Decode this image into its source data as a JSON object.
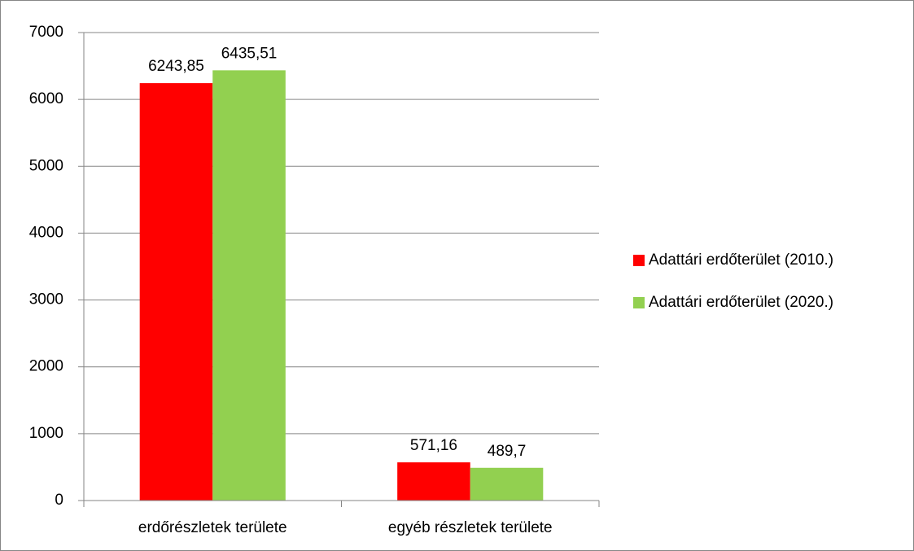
{
  "chart_data": {
    "type": "bar",
    "categories": [
      "erdőrészletek területe",
      "egyéb részletek területe"
    ],
    "series": [
      {
        "name": "Adattári erdőterület (2010.)",
        "color": "#ff0000",
        "values": [
          6243.85,
          571.16
        ],
        "value_labels": [
          "6243,85",
          "571,16"
        ]
      },
      {
        "name": "Adattári erdőterület (2020.)",
        "color": "#92d050",
        "values": [
          6435.51,
          489.7
        ],
        "value_labels": [
          "6435,51",
          "489,7"
        ]
      }
    ],
    "ylim": [
      0,
      7000
    ],
    "yticks": [
      0,
      1000,
      2000,
      3000,
      4000,
      5000,
      6000,
      7000
    ],
    "grid": true,
    "legend": "right"
  }
}
